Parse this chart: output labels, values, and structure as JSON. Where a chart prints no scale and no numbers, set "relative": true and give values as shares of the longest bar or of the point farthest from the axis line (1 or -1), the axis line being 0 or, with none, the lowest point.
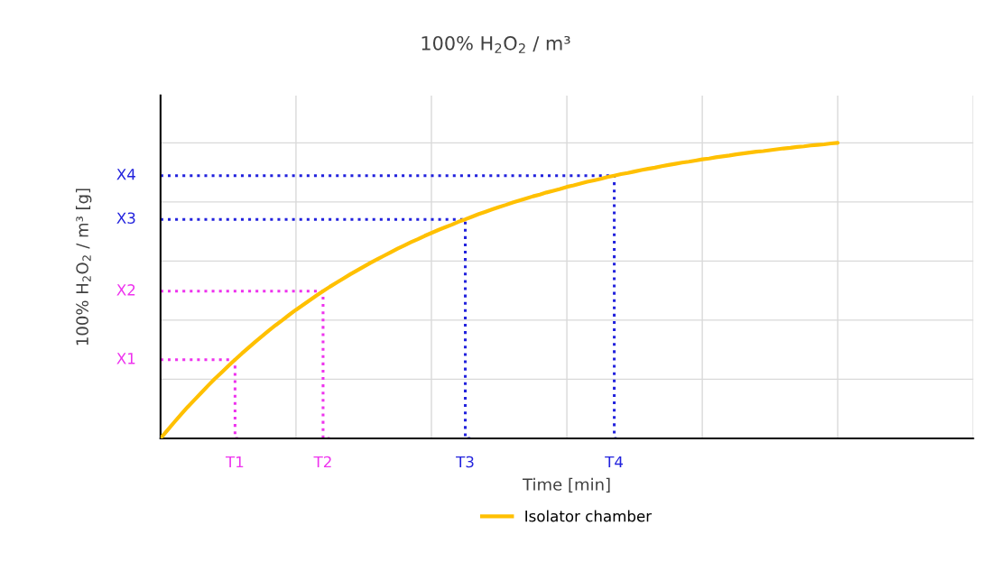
{
  "chart_data": {
    "type": "line",
    "title": "100% H$_{2}$O$_{2}$ / m³",
    "xlabel": "Time [min]",
    "ylabel": "100% H$_{2}$O$_{2}$ / m³ [g]",
    "relative": true,
    "grid": true,
    "legend": "bottom",
    "categories": [
      null,
      null,
      null,
      null,
      null,
      null,
      null,
      null,
      null,
      null,
      null,
      "T1",
      null,
      null,
      null,
      null,
      null,
      null,
      null,
      null,
      null,
      null,
      null,
      null,
      "T2",
      null,
      null,
      null,
      null,
      null,
      null,
      null,
      null,
      null,
      null,
      null,
      null,
      null,
      null,
      null,
      null,
      null,
      null,
      null,
      null,
      "T3",
      null,
      null,
      null,
      null,
      null,
      null,
      null,
      null,
      null,
      null,
      null,
      null,
      null,
      null,
      null,
      null,
      null,
      null,
      null,
      null,
      null,
      "T4",
      null,
      null,
      null,
      null,
      null,
      null,
      null,
      null,
      null,
      null,
      null,
      null,
      null,
      null,
      null,
      null,
      null,
      null,
      null,
      null,
      null,
      null,
      null,
      null,
      null,
      null,
      null,
      null,
      null,
      null,
      null,
      null,
      null,
      null,
      null,
      null,
      null,
      null,
      null,
      null,
      null,
      null,
      null,
      null,
      null,
      null,
      null,
      null,
      null,
      null,
      null,
      null,
      null
    ],
    "series": [
      {
        "name": "Isolator chamber",
        "color": "#ffc000",
        "line_style": "solid",
        "values": [
          0,
          0.027,
          0.054,
          0.08,
          0.106,
          0.13,
          0.154,
          0.178,
          0.201,
          0.223,
          0.245,
          0.266,
          0.287,
          0.307,
          0.327,
          0.346,
          0.365,
          0.383,
          0.4,
          0.418,
          0.435,
          0.451,
          0.467,
          0.483,
          0.498,
          0.513,
          0.527,
          0.541,
          0.555,
          0.568,
          0.581,
          0.594,
          0.606,
          0.618,
          0.63,
          0.642,
          0.653,
          0.664,
          0.674,
          0.685,
          0.695,
          0.705,
          0.714,
          0.723,
          0.733,
          0.741,
          0.75,
          0.759,
          0.767,
          0.775,
          0.783,
          0.79,
          0.798,
          0.805,
          0.812,
          0.819,
          0.825,
          0.832,
          0.838,
          0.844,
          0.851,
          0.856,
          0.862,
          0.868,
          0.873,
          0.878,
          0.884,
          0.889,
          0.894,
          0.898,
          0.903,
          0.908,
          0.912,
          0.916,
          0.921,
          0.925,
          0.929,
          0.933,
          0.936,
          0.94,
          0.944,
          0.947,
          0.951,
          0.954,
          0.957,
          0.961,
          0.964,
          0.967,
          0.97,
          0.972,
          0.975,
          0.978,
          0.981,
          0.983,
          0.986,
          0.988,
          0.991,
          0.993,
          0.995,
          0.998,
          1,
          null,
          null,
          null,
          null,
          null,
          null,
          null,
          null,
          null,
          null,
          null,
          null,
          null,
          null,
          null,
          null,
          null,
          null,
          null,
          null
        ]
      },
      {
        "name": "X1",
        "type": "step",
        "color": "#ee33ee",
        "line_style": "dotted",
        "values": [
          0.266,
          0.266,
          0.266,
          0.266,
          0.266,
          0.266,
          0.266,
          0.266,
          0.266,
          0.266,
          0.266,
          0.266,
          0,
          null,
          null,
          null,
          null,
          null,
          null,
          null,
          null,
          null,
          null,
          null,
          null,
          null,
          null,
          null,
          null,
          null,
          null,
          null,
          null,
          null,
          null,
          null,
          null,
          null,
          null,
          null,
          null,
          null,
          null,
          null,
          null,
          null,
          null,
          null,
          null,
          null,
          null,
          null,
          null,
          null,
          null,
          null,
          null,
          null,
          null,
          null,
          null,
          null,
          null,
          null,
          null,
          null,
          null,
          null,
          null,
          null,
          null,
          null,
          null,
          null,
          null,
          null,
          null,
          null,
          null,
          null,
          null,
          null,
          null,
          null,
          null,
          null,
          null,
          null,
          null,
          null,
          null,
          null,
          null,
          null,
          null,
          null,
          null,
          null,
          null,
          null,
          null,
          null,
          null,
          null,
          null,
          null,
          null,
          null,
          null,
          null,
          null,
          null,
          null,
          null,
          null,
          null,
          null,
          null,
          null,
          null,
          null
        ]
      },
      {
        "name": "X2",
        "type": "step",
        "color": "#ee33ee",
        "line_style": "dotted",
        "values": [
          0.498,
          0.498,
          0.498,
          0.498,
          0.498,
          0.498,
          0.498,
          0.498,
          0.498,
          0.498,
          0.498,
          0.498,
          0.498,
          0.498,
          0.498,
          0.498,
          0.498,
          0.498,
          0.498,
          0.498,
          0.498,
          0.498,
          0.498,
          0.498,
          0.498,
          0,
          null,
          null,
          null,
          null,
          null,
          null,
          null,
          null,
          null,
          null,
          null,
          null,
          null,
          null,
          null,
          null,
          null,
          null,
          null,
          null,
          null,
          null,
          null,
          null,
          null,
          null,
          null,
          null,
          null,
          null,
          null,
          null,
          null,
          null,
          null,
          null,
          null,
          null,
          null,
          null,
          null,
          null,
          null,
          null,
          null,
          null,
          null,
          null,
          null,
          null,
          null,
          null,
          null,
          null,
          null,
          null,
          null,
          null,
          null,
          null,
          null,
          null,
          null,
          null,
          null,
          null,
          null,
          null,
          null,
          null,
          null,
          null,
          null,
          null,
          null,
          null,
          null,
          null,
          null,
          null,
          null,
          null,
          null,
          null,
          null,
          null,
          null,
          null,
          null,
          null,
          null,
          null,
          null,
          null,
          null
        ]
      },
      {
        "name": "X3",
        "type": "step",
        "color": "#2222dd",
        "line_style": "dotted",
        "values": [
          0.741,
          0.741,
          0.741,
          0.741,
          0.741,
          0.741,
          0.741,
          0.741,
          0.741,
          0.741,
          0.741,
          0.741,
          0.741,
          0.741,
          0.741,
          0.741,
          0.741,
          0.741,
          0.741,
          0.741,
          0.741,
          0.741,
          0.741,
          0.741,
          0.741,
          0.741,
          0.741,
          0.741,
          0.741,
          0.741,
          0.741,
          0.741,
          0.741,
          0.741,
          0.741,
          0.741,
          0.741,
          0.741,
          0.741,
          0.741,
          0.741,
          0.741,
          0.741,
          0.741,
          0.741,
          0.741,
          0,
          null,
          null,
          null,
          null,
          null,
          null,
          null,
          null,
          null,
          null,
          null,
          null,
          null,
          null,
          null,
          null,
          null,
          null,
          null,
          null,
          null,
          null,
          null,
          null,
          null,
          null,
          null,
          null,
          null,
          null,
          null,
          null,
          null,
          null,
          null,
          null,
          null,
          null,
          null,
          null,
          null,
          null,
          null,
          null,
          null,
          null,
          null,
          null,
          null,
          null,
          null,
          null,
          null,
          null,
          null,
          null,
          null,
          null,
          null,
          null,
          null,
          null,
          null,
          null,
          null,
          null,
          null,
          null,
          null,
          null,
          null,
          null,
          null,
          null
        ]
      },
      {
        "name": "X4",
        "type": "step",
        "color": "#2222dd",
        "line_style": "dotted",
        "values": [
          0.889,
          0.889,
          0.889,
          0.889,
          0.889,
          0.889,
          0.889,
          0.889,
          0.889,
          0.889,
          0.889,
          0.889,
          0.889,
          0.889,
          0.889,
          0.889,
          0.889,
          0.889,
          0.889,
          0.889,
          0.889,
          0.889,
          0.889,
          0.889,
          0.889,
          0.889,
          0.889,
          0.889,
          0.889,
          0.889,
          0.889,
          0.889,
          0.889,
          0.889,
          0.889,
          0.889,
          0.889,
          0.889,
          0.889,
          0.889,
          0.889,
          0.889,
          0.889,
          0.889,
          0.889,
          0.889,
          0.889,
          0.889,
          0.889,
          0.889,
          0.889,
          0.889,
          0.889,
          0.889,
          0.889,
          0.889,
          0.889,
          0.889,
          0.889,
          0.889,
          0.889,
          0.889,
          0.889,
          0.889,
          0.889,
          0.889,
          0.889,
          0.889,
          0,
          null,
          null,
          null,
          null,
          null,
          null,
          null,
          null,
          null,
          null,
          null,
          null,
          null,
          null,
          null,
          null,
          null,
          null,
          null,
          null,
          null,
          null,
          null,
          null,
          null,
          null,
          null,
          null,
          null,
          null,
          null,
          null,
          null,
          null,
          null,
          null,
          null,
          null,
          null,
          null,
          null,
          null,
          null,
          null,
          null,
          null,
          null,
          null,
          null,
          null,
          null,
          null
        ]
      }
    ]
  }
}
